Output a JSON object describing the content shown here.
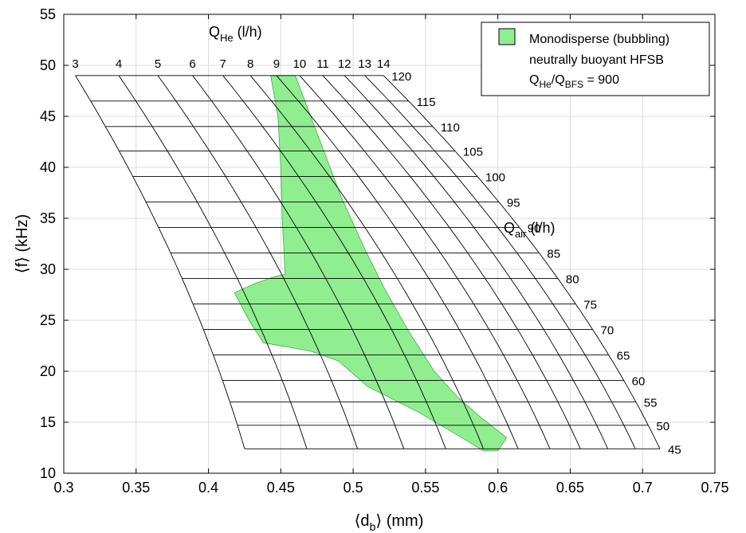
{
  "chart_data": {
    "type": "area",
    "title": "",
    "xlabel": {
      "main": "⟨d",
      "sub": "b",
      "tail": "⟩ (mm)"
    },
    "ylabel": "⟨f⟩ (kHz)",
    "xlim": [
      0.3,
      0.75
    ],
    "ylim": [
      10,
      55
    ],
    "xticks": [
      "0.3",
      "0.35",
      "0.4",
      "0.45",
      "0.5",
      "0.55",
      "0.6",
      "0.65",
      "0.7",
      "0.75"
    ],
    "yticks": [
      "10",
      "15",
      "20",
      "25",
      "30",
      "35",
      "40",
      "45",
      "50",
      "55"
    ],
    "grid": true,
    "legend": {
      "position": "top-right",
      "line1": "Monodisperse (bubbling)",
      "line2": "neutrally buoyant HFSB",
      "line3_a": "Q",
      "line3_sub1": "He",
      "line3_b": "/Q",
      "line3_sub2": "BFS",
      "line3_c": " = 900",
      "swatch_color": "#90ee90",
      "border_color": "#000000"
    },
    "nomogram": {
      "qhe_title": {
        "main": "Q",
        "sub": "He",
        "tail": " (l/h)"
      },
      "qair_title": {
        "main": "Q",
        "sub": "air",
        "tail": " (l/h)"
      },
      "qhe_values": [
        3,
        4,
        5,
        6,
        7,
        8,
        9,
        10,
        11,
        12,
        13,
        14
      ],
      "qhe_labels": [
        "3",
        "4",
        "5",
        "6",
        "7",
        "8",
        "9",
        "10",
        "11",
        "12",
        "13",
        "14"
      ],
      "qhe_top_x": [
        0.308,
        0.338,
        0.365,
        0.389,
        0.41,
        0.429,
        0.447,
        0.463,
        0.479,
        0.494,
        0.508,
        0.521
      ],
      "qhe_bottom_x": [
        0.425,
        0.468,
        0.503,
        0.535,
        0.564,
        0.59,
        0.614,
        0.636,
        0.657,
        0.676,
        0.695,
        0.712
      ],
      "qair_values": [
        120,
        115,
        110,
        105,
        100,
        95,
        90,
        85,
        80,
        75,
        70,
        65,
        60,
        55,
        50,
        45
      ],
      "qair_labels": [
        "120",
        "115",
        "110",
        "105",
        "100",
        "95",
        "90",
        "85",
        "80",
        "75",
        "70",
        "65",
        "60",
        "55",
        "50",
        "45"
      ],
      "qair_f": [
        49.0,
        46.5,
        44.0,
        41.6,
        39.1,
        36.6,
        34.1,
        31.6,
        29.1,
        26.6,
        24.1,
        21.6,
        19.1,
        17.0,
        14.7,
        12.4
      ],
      "line_color": "#000000"
    },
    "series": [
      {
        "fill_color": "#90ee90",
        "edge_color": "#3cb043",
        "polygon": [
          [
            0.443,
            49.0
          ],
          [
            0.46,
            49.0
          ],
          [
            0.476,
            43.0
          ],
          [
            0.492,
            37.0
          ],
          [
            0.508,
            32.0
          ],
          [
            0.522,
            28.0
          ],
          [
            0.538,
            24.0
          ],
          [
            0.556,
            20.0
          ],
          [
            0.572,
            17.5
          ],
          [
            0.588,
            15.5
          ],
          [
            0.606,
            13.5
          ],
          [
            0.6,
            12.2
          ],
          [
            0.59,
            12.2
          ],
          [
            0.575,
            13.5
          ],
          [
            0.545,
            16.0
          ],
          [
            0.51,
            18.5
          ],
          [
            0.49,
            21.0
          ],
          [
            0.47,
            22.0
          ],
          [
            0.438,
            22.8
          ],
          [
            0.428,
            25.0
          ],
          [
            0.418,
            27.7
          ],
          [
            0.432,
            28.6
          ],
          [
            0.446,
            29.3
          ],
          [
            0.453,
            29.5
          ],
          [
            0.451,
            35.0
          ],
          [
            0.45,
            40.0
          ],
          [
            0.448,
            45.0
          ],
          [
            0.443,
            49.0
          ]
        ]
      }
    ]
  }
}
